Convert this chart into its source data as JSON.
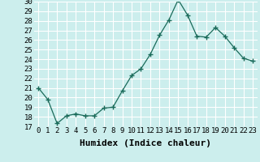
{
  "x": [
    0,
    1,
    2,
    3,
    4,
    5,
    6,
    7,
    8,
    9,
    10,
    11,
    12,
    13,
    14,
    15,
    16,
    17,
    18,
    19,
    20,
    21,
    22,
    23
  ],
  "y": [
    21.0,
    19.8,
    17.3,
    18.1,
    18.3,
    18.1,
    18.1,
    18.9,
    19.0,
    20.7,
    22.3,
    23.0,
    24.5,
    26.5,
    28.1,
    30.2,
    28.6,
    26.4,
    26.3,
    27.3,
    26.4,
    25.2,
    24.1,
    23.8
  ],
  "line_color": "#1a6b5a",
  "marker": "+",
  "marker_size": 4,
  "bg_color": "#cceeed",
  "grid_color": "#b0d8d8",
  "xlabel": "Humidex (Indice chaleur)",
  "ylim": [
    17,
    30
  ],
  "xlim": [
    -0.5,
    23.5
  ],
  "yticks": [
    17,
    18,
    19,
    20,
    21,
    22,
    23,
    24,
    25,
    26,
    27,
    28,
    29,
    30
  ],
  "xticks": [
    0,
    1,
    2,
    3,
    4,
    5,
    6,
    7,
    8,
    9,
    10,
    11,
    12,
    13,
    14,
    15,
    16,
    17,
    18,
    19,
    20,
    21,
    22,
    23
  ],
  "xlabel_fontsize": 8,
  "tick_fontsize": 6.5
}
